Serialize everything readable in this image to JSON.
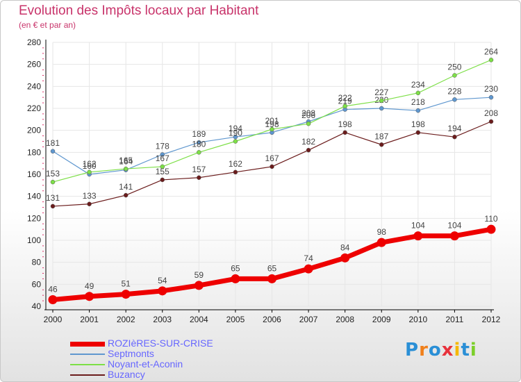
{
  "title": "Evolution des Impôts locaux par Habitant",
  "subtitle": "(en € et par an)",
  "logo_text": "Proxiti",
  "colors": {
    "title": "#c8336a",
    "legend_text": "#6666ff",
    "grid": "#e6e6e6",
    "axis": "#000000",
    "minor_tick": "#e0306a",
    "label": "#444444"
  },
  "chart_data": {
    "type": "line",
    "title": "Evolution des Impôts locaux par Habitant",
    "subtitle": "(en € et par an)",
    "xlabel": "",
    "ylabel": "",
    "categories": [
      "2000",
      "2001",
      "2002",
      "2003",
      "2004",
      "2005",
      "2006",
      "2007",
      "2008",
      "2009",
      "2010",
      "2011",
      "2012"
    ],
    "ylim": [
      40,
      280
    ],
    "yticks": [
      40,
      60,
      80,
      100,
      120,
      140,
      160,
      180,
      200,
      220,
      240,
      260,
      280
    ],
    "grid": true,
    "legend_position": "bottom-left",
    "series": [
      {
        "name": "ROZIèRES-SUR-CRISE",
        "color": "#ee0000",
        "values": [
          46,
          49,
          51,
          54,
          59,
          65,
          65,
          74,
          84,
          98,
          104,
          104,
          110
        ]
      },
      {
        "name": "Septmonts",
        "color": "#5f97cf",
        "values": [
          181,
          160,
          164,
          178,
          189,
          194,
          198,
          208,
          219,
          220,
          218,
          228,
          230
        ]
      },
      {
        "name": "Noyant-et-Aconin",
        "color": "#7ddf47",
        "values": [
          153,
          162,
          165,
          167,
          180,
          190,
          201,
          206,
          222,
          227,
          234,
          250,
          264
        ]
      },
      {
        "name": "Buzancy",
        "color": "#6b1c1c",
        "values": [
          131,
          133,
          141,
          155,
          157,
          162,
          167,
          182,
          198,
          187,
          198,
          194,
          208
        ]
      }
    ]
  }
}
